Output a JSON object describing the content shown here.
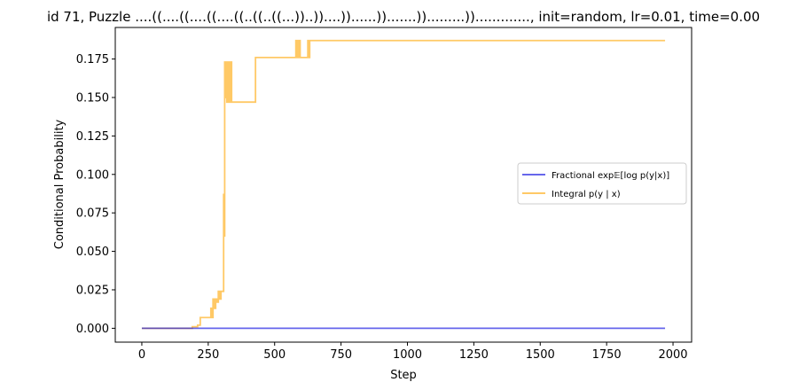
{
  "chart_data": {
    "type": "line",
    "title": "id 71, Puzzle ....((....((....((....((..((..((...))..))....))......)).......)).........))............., init=random, lr=0.01, time=0.00",
    "xlabel": "Step",
    "ylabel": "Conditional Probability",
    "xlim": [
      -100,
      2070
    ],
    "ylim": [
      -0.009,
      0.1955
    ],
    "xticks": [
      0,
      250,
      500,
      750,
      1000,
      1250,
      1500,
      1750,
      2000
    ],
    "xtick_labels": [
      "0",
      "250",
      "500",
      "750",
      "1000",
      "1250",
      "1500",
      "1750",
      "2000"
    ],
    "yticks": [
      0,
      0.025,
      0.05,
      0.075,
      0.1,
      0.125,
      0.15,
      0.175
    ],
    "ytick_labels": [
      "0.000",
      "0.025",
      "0.050",
      "0.075",
      "0.100",
      "0.125",
      "0.150",
      "0.175"
    ],
    "grid": false,
    "legend_position": "center-right",
    "series": [
      {
        "name": "Fractional exp𝔼[log p(y|x)]",
        "color": "#0000dd",
        "x": [
          0,
          1970
        ],
        "y": [
          0,
          0
        ]
      },
      {
        "name": "Integral p(y | x)",
        "color": "#ffa500",
        "x": [
          0,
          190,
          190,
          210,
          210,
          220,
          220,
          260,
          260,
          263,
          263,
          268,
          268,
          272,
          272,
          278,
          278,
          282,
          282,
          288,
          288,
          292,
          292,
          298,
          298,
          302,
          302,
          308,
          308,
          310,
          310,
          312,
          312,
          314,
          314,
          317,
          317,
          320,
          320,
          322,
          322,
          328,
          328,
          332,
          332,
          338,
          338,
          342,
          342,
          428,
          428,
          580,
          580,
          583,
          583,
          587,
          587,
          590,
          590,
          593,
          593,
          596,
          596,
          600,
          600,
          625,
          625,
          628,
          628,
          632,
          632,
          1970
        ],
        "y": [
          0,
          0,
          0.001,
          0.001,
          0.002,
          0.002,
          0.007,
          0.007,
          0.013,
          0.013,
          0.007,
          0.007,
          0.019,
          0.019,
          0.013,
          0.013,
          0.019,
          0.019,
          0.017,
          0.017,
          0.024,
          0.024,
          0.019,
          0.019,
          0.024,
          0.024,
          0.024,
          0.024,
          0.087,
          0.087,
          0.06,
          0.06,
          0.173,
          0.173,
          0.15,
          0.15,
          0.173,
          0.173,
          0.147,
          0.147,
          0.173,
          0.173,
          0.147,
          0.147,
          0.173,
          0.173,
          0.147,
          0.147,
          0.147,
          0.147,
          0.176,
          0.176,
          0.187,
          0.187,
          0.176,
          0.176,
          0.187,
          0.187,
          0.176,
          0.176,
          0.187,
          0.187,
          0.176,
          0.176,
          0.176,
          0.176,
          0.187,
          0.187,
          0.176,
          0.176,
          0.187,
          0.187
        ]
      }
    ]
  }
}
